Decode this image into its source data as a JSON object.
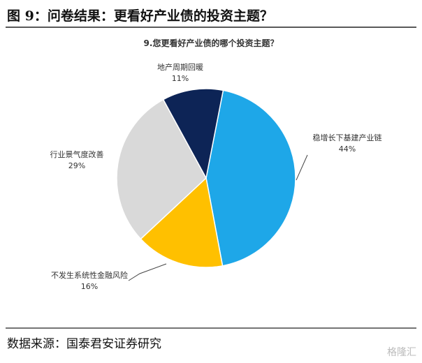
{
  "header": {
    "title": "图 9：问卷结果：更看好产业债的投资主题？"
  },
  "chart_data": {
    "type": "pie",
    "title": "9.您更看好产业债的哪个投资主题？",
    "categories": [
      "稳增长下基建产业链",
      "不发生系统性金融风险",
      "行业景气度改善",
      "地产周期回暖"
    ],
    "values": [
      44,
      16,
      29,
      11
    ],
    "value_labels": [
      "44%",
      "16%",
      "29%",
      "11%"
    ],
    "colors": [
      "#1ea7e8",
      "#ffc000",
      "#d9d9d9",
      "#0d2456"
    ]
  },
  "footer": {
    "source": "数据来源：国泰君安证券研究",
    "watermark": "格隆汇"
  }
}
